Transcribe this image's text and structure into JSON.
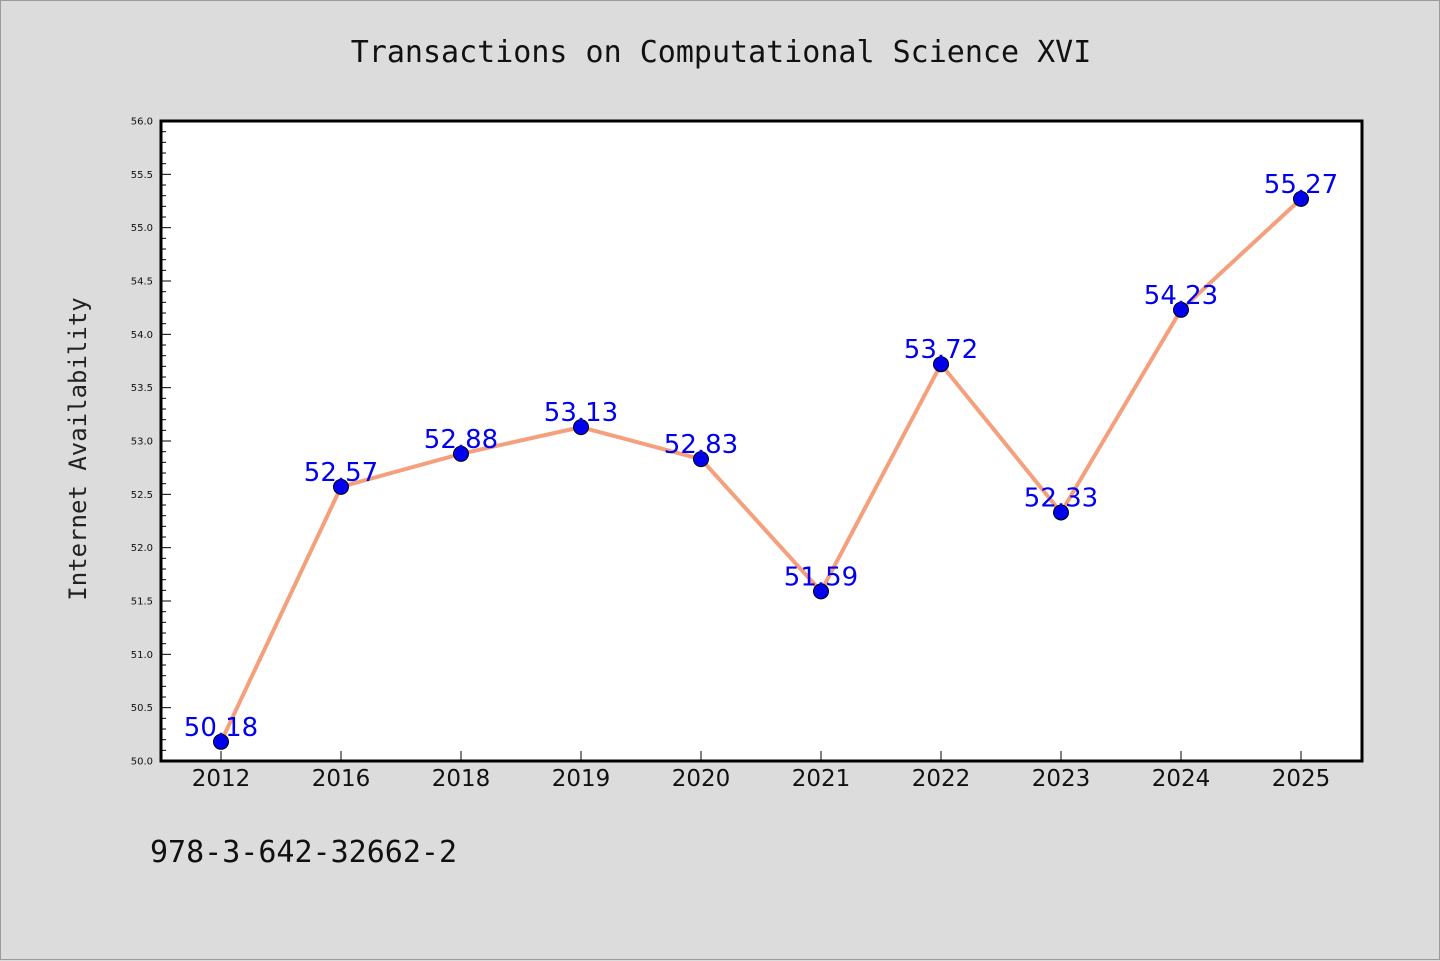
{
  "chart_data": {
    "type": "line",
    "title": "Transactions on Computational Science XVI",
    "xlabel": "",
    "ylabel": "Internet Availability",
    "categories": [
      "2012",
      "2016",
      "2018",
      "2019",
      "2020",
      "2021",
      "2022",
      "2023",
      "2024",
      "2025"
    ],
    "values": [
      50.18,
      52.57,
      52.88,
      53.13,
      52.83,
      51.59,
      53.72,
      52.33,
      54.23,
      55.27
    ],
    "data_labels": [
      "50.18",
      "52.57",
      "52.88",
      "53.13",
      "52.83",
      "51.59",
      "53.72",
      "52.33",
      "54.23",
      "55.27"
    ],
    "ylim": [
      50.0,
      56.0
    ],
    "yticks": [
      "50.0",
      "50.5",
      "51.0",
      "51.5",
      "52.0",
      "52.5",
      "53.0",
      "53.5",
      "54.0",
      "54.5",
      "55.0",
      "55.5",
      "56.0"
    ],
    "grid": false,
    "line_color": "#f4a07c",
    "marker_color": "#0000ee",
    "label_color": "#0000ee",
    "plot_background": "#ffffff",
    "figure_background": "#dcdcdc"
  },
  "footer": {
    "isbn": "978-3-642-32662-2"
  }
}
